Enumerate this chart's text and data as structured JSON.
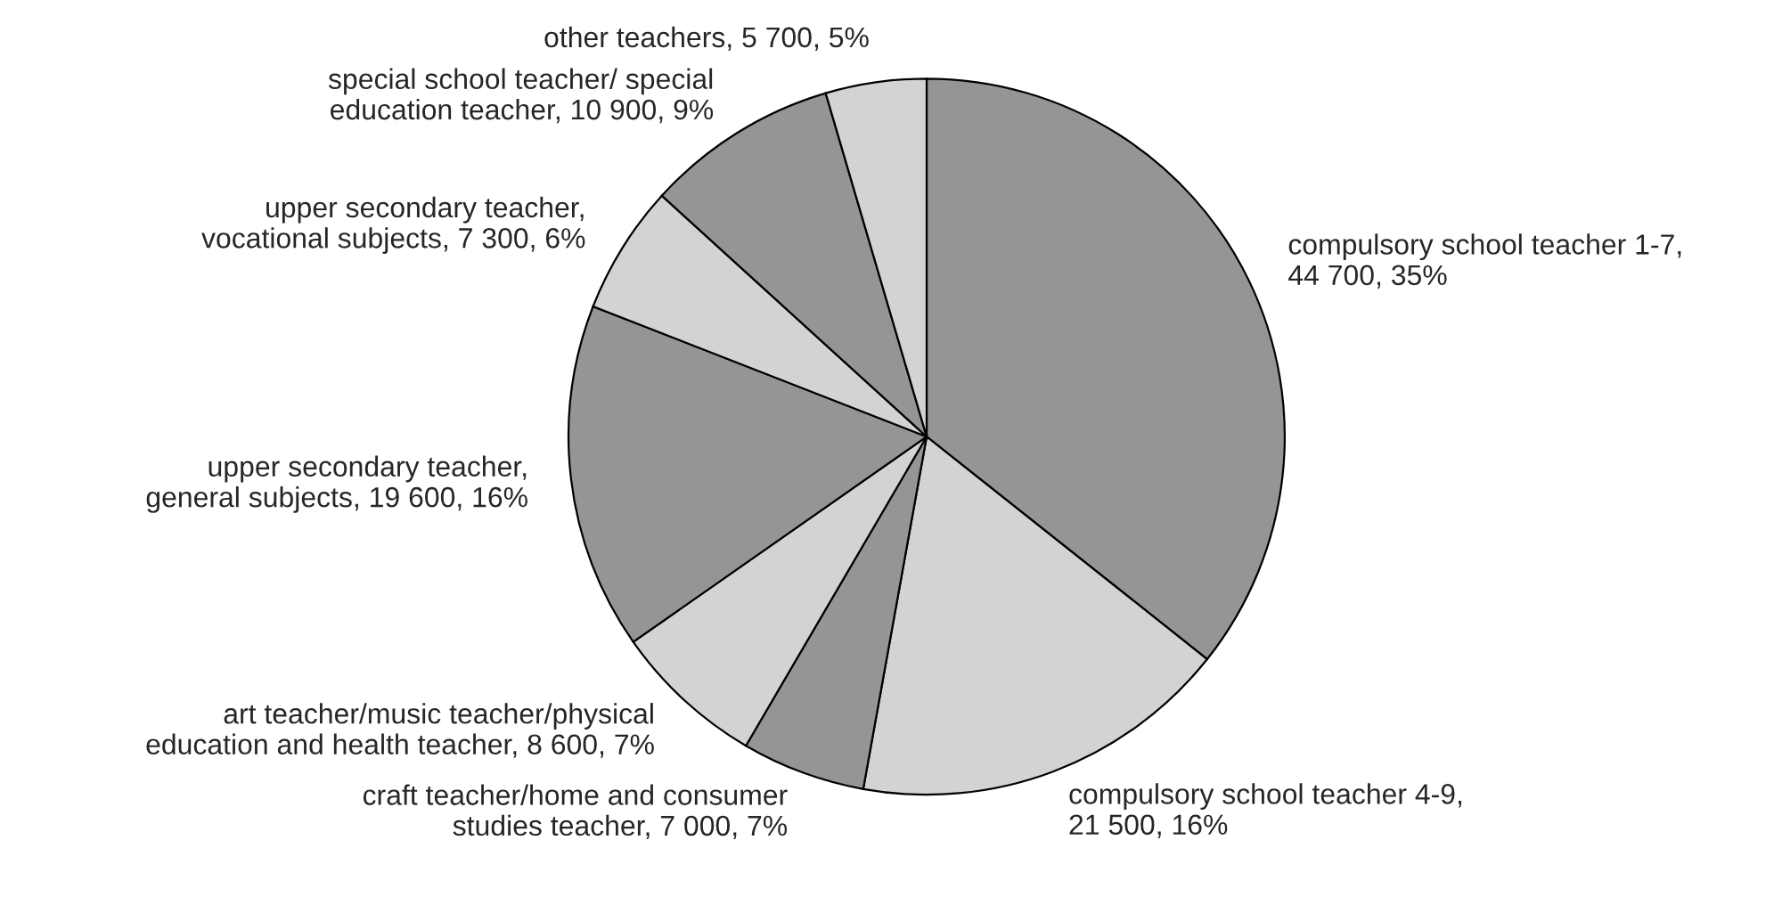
{
  "chart_data": {
    "type": "pie",
    "categories": [
      "compulsory school teacher 1-7,\n44 700, 35%",
      "compulsory school teacher 4-9,\n21 500, 16%",
      "craft teacher/home and consumer\nstudies teacher, 7 000, 7%",
      "art teacher/music teacher/physical\neducation and health teacher, 8 600, 7%",
      "upper secondary teacher,\ngeneral subjects, 19 600, 16%",
      "upper secondary teacher,\nvocational subjects, 7 300, 6%",
      "special school teacher/ special\neducation teacher, 10 900, 9%",
      "other teachers, 5 700, 5%"
    ],
    "values": [
      44700,
      21500,
      7000,
      8600,
      19600,
      7300,
      10900,
      5700
    ],
    "colors": [
      "#959595",
      "#d3d3d3",
      "#959595",
      "#d3d3d3",
      "#959595",
      "#d3d3d3",
      "#959595",
      "#d3d3d3"
    ]
  }
}
